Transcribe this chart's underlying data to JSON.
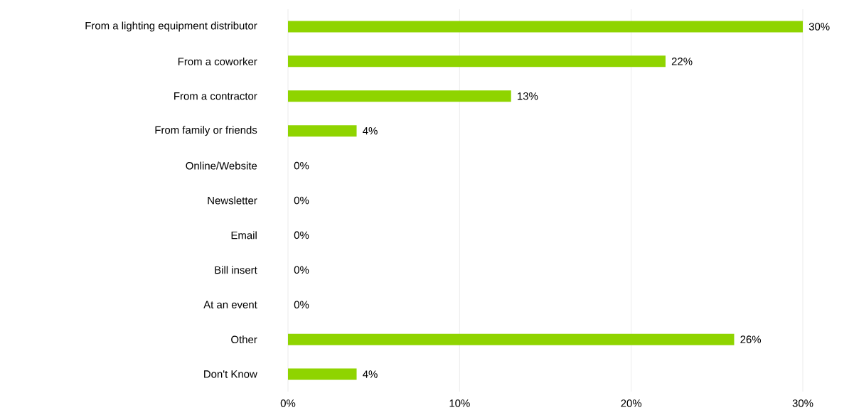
{
  "chart_data": {
    "type": "bar",
    "orientation": "horizontal",
    "categories": [
      "From a lighting equipment distributor",
      "From a coworker",
      "From a contractor",
      "From family or friends",
      "Online/Website",
      "Newsletter",
      "Email",
      "Bill insert",
      "At an event",
      "Other",
      "Don't Know"
    ],
    "values": [
      30,
      22,
      13,
      4,
      0,
      0,
      0,
      0,
      0,
      26,
      4
    ],
    "value_labels": [
      "30%",
      "22%",
      "13%",
      "4%",
      "0%",
      "0%",
      "0%",
      "0%",
      "0%",
      "26%",
      "4%"
    ],
    "color": "#8fd400",
    "xlim": [
      0,
      30
    ],
    "xticks": [
      {
        "value": 0,
        "label": "0%"
      },
      {
        "value": 10,
        "label": "10%"
      },
      {
        "value": 20,
        "label": "20%"
      },
      {
        "value": 30,
        "label": "30%"
      }
    ],
    "grid": "x"
  }
}
